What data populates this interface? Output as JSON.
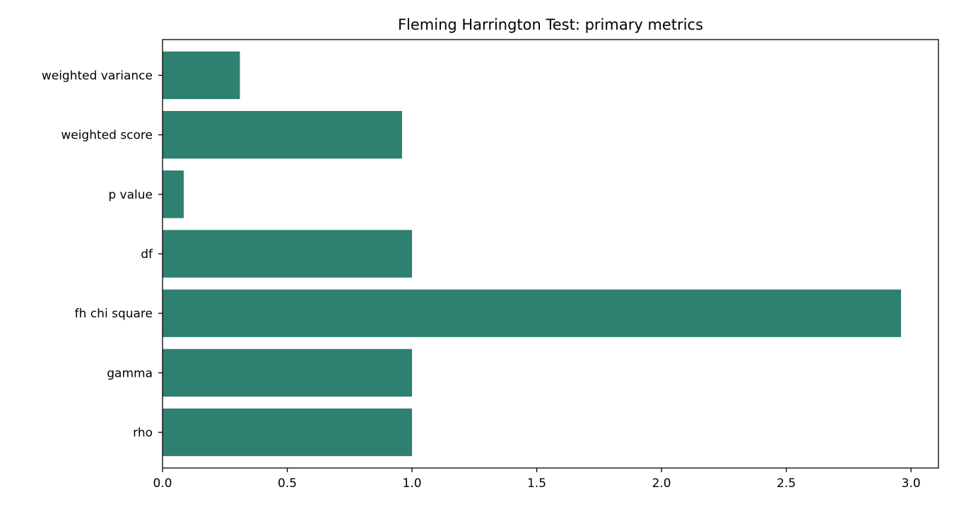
{
  "chart_data": {
    "type": "bar",
    "orientation": "horizontal",
    "title": "Fleming Harrington Test: primary metrics",
    "xlabel": "",
    "ylabel": "",
    "categories": [
      "rho",
      "gamma",
      "fh chi square",
      "df",
      "p value",
      "weighted score",
      "weighted variance"
    ],
    "values": [
      1.0,
      1.0,
      2.96,
      1.0,
      0.085,
      0.96,
      0.31
    ],
    "xlim": [
      0,
      3.11
    ],
    "xticks": [
      "0.0",
      "0.5",
      "1.0",
      "1.5",
      "2.0",
      "2.5",
      "3.0"
    ],
    "grid": false,
    "legend": "none",
    "bar_color": "#2e8070"
  }
}
